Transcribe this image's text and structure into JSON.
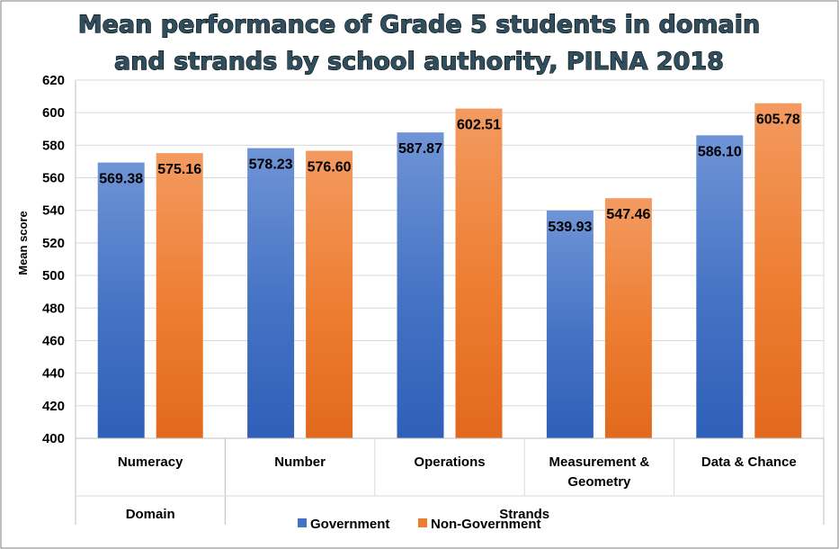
{
  "chart_data": {
    "type": "bar",
    "title_lines": [
      "Mean performance of Grade 5 students in domain",
      "and strands by school authority, PILNA 2018"
    ],
    "ylabel": "Mean score",
    "ylim": [
      400,
      620
    ],
    "ytick_step": 20,
    "yticks": [
      "400",
      "420",
      "440",
      "460",
      "480",
      "500",
      "520",
      "540",
      "560",
      "580",
      "600",
      "620"
    ],
    "categories": [
      "Numeracy",
      "Number",
      "Operations",
      "Measurement & Geometry",
      "Data & Chance"
    ],
    "category_label_lines": [
      [
        "Numeracy"
      ],
      [
        "Number"
      ],
      [
        "Operations"
      ],
      [
        "Measurement &",
        "Geometry"
      ],
      [
        "Data & Chance"
      ]
    ],
    "groups": [
      {
        "label": "Domain",
        "categories": [
          "Numeracy"
        ]
      },
      {
        "label": "Strands",
        "categories": [
          "Number",
          "Operations",
          "Measurement & Geometry",
          "Data & Chance"
        ]
      }
    ],
    "series": [
      {
        "name": "Government",
        "color": "#4472c4",
        "values": [
          569.38,
          578.23,
          587.87,
          539.93,
          586.1
        ],
        "labels": [
          "569.38",
          "578.23",
          "587.87",
          "539.93",
          "586.10"
        ]
      },
      {
        "name": "Non-Government",
        "color": "#ed7d31",
        "values": [
          575.16,
          576.6,
          602.51,
          547.46,
          605.78
        ],
        "labels": [
          "575.16",
          "576.60",
          "602.51",
          "547.46",
          "605.78"
        ]
      }
    ],
    "legend_position": "bottom-center"
  }
}
